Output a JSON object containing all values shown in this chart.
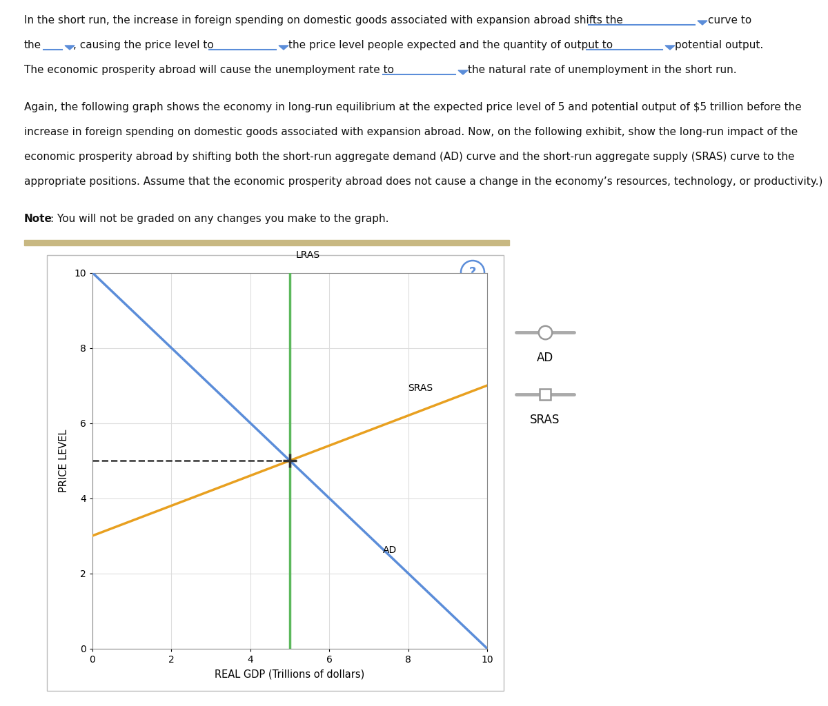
{
  "separator_color": "#c8b882",
  "graph_bg": "#ffffff",
  "grid_color": "#dddddd",
  "lras_color": "#5cb85c",
  "lras_x": 5,
  "ad_color": "#5b8dd9",
  "ad_x0": 0,
  "ad_y0": 10,
  "ad_x1": 10,
  "ad_y1": 0,
  "sras_color": "#e8a020",
  "sras_x0": 0,
  "sras_y0": 3,
  "sras_x1": 10,
  "sras_y1": 7,
  "equilibrium_x": 5,
  "equilibrium_y": 5,
  "dashed_color": "#333333",
  "cross_color": "#333333",
  "xlabel": "REAL GDP (Trillions of dollars)",
  "ylabel": "PRICE LEVEL",
  "xlim": [
    0,
    10
  ],
  "ylim": [
    0,
    10
  ],
  "xticks": [
    0,
    2,
    4,
    6,
    8,
    10
  ],
  "yticks": [
    0,
    2,
    4,
    6,
    8,
    10
  ],
  "lras_label": "LRAS",
  "ad_label": "AD",
  "sras_label": "SRAS",
  "legend_gray": "#aaaaaa",
  "legend_ad_label": "AD",
  "legend_sras_label": "SRAS",
  "question_mark_color": "#5b8dd9",
  "dropdown_color": "#5b8dd9",
  "text_color": "#111111",
  "fs_main": 11.0,
  "fs_graph": 10.0
}
